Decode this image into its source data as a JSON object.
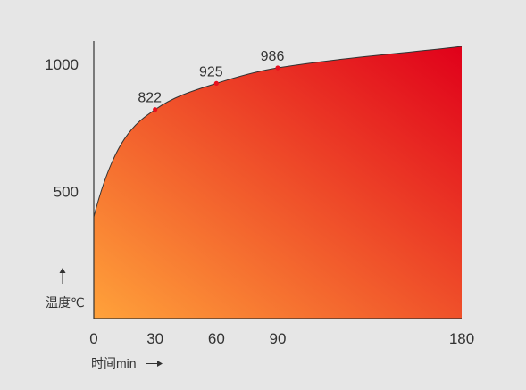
{
  "chart_data": {
    "type": "area",
    "x": [
      0,
      30,
      60,
      90,
      180
    ],
    "y": [
      400,
      822,
      925,
      986,
      1070
    ],
    "labeled_points": [
      {
        "x": 30,
        "y": 822,
        "label": "822"
      },
      {
        "x": 60,
        "y": 925,
        "label": "925"
      },
      {
        "x": 90,
        "y": 986,
        "label": "986"
      }
    ],
    "x_ticks": [
      {
        "value": 0,
        "label": "0"
      },
      {
        "value": 30,
        "label": "30"
      },
      {
        "value": 60,
        "label": "60"
      },
      {
        "value": 90,
        "label": "90"
      },
      {
        "value": 180,
        "label": "180"
      }
    ],
    "y_ticks": [
      {
        "value": 500,
        "label": "500"
      },
      {
        "value": 1000,
        "label": "1000"
      }
    ],
    "xlabel": "时间min",
    "ylabel": "温度℃",
    "xlim": [
      0,
      180
    ],
    "ylim": [
      0,
      1070
    ],
    "grid": false,
    "colors": {
      "fill_start": "#ffa23a",
      "fill_end": "#e0001a",
      "marker": "#e8101e",
      "line": "#333333"
    }
  }
}
